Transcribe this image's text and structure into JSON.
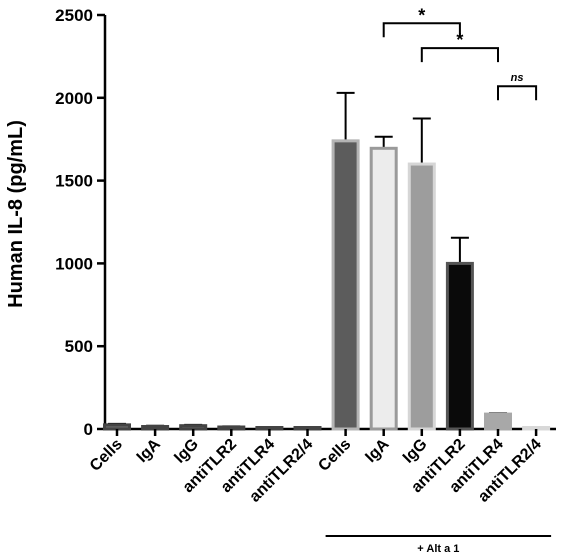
{
  "chart_data": {
    "type": "bar",
    "ylabel": "Human IL-8 (pg/mL)",
    "ylim": [
      0,
      2500
    ],
    "yticks": [
      0,
      500,
      1000,
      1500,
      2000,
      2500
    ],
    "grid": false,
    "categories": [
      "Cells",
      "IgA",
      "IgG",
      "antiTLR2",
      "antiTLR4",
      "antiTLR2/4",
      "Cells",
      "IgA",
      "IgG",
      "antiTLR2",
      "antiTLR4",
      "antiTLR2/4"
    ],
    "values": [
      25,
      15,
      20,
      12,
      8,
      8,
      1740,
      1695,
      1600,
      1000,
      90,
      8
    ],
    "errors": [
      6,
      5,
      5,
      4,
      3,
      3,
      290,
      70,
      275,
      155,
      5,
      3
    ],
    "bar_fill": [
      "#6a6a6a",
      "#6a6a6a",
      "#6a6a6a",
      "#6a6a6a",
      "#6a6a6a",
      "#6a6a6a",
      "#5c5c5c",
      "#ececec",
      "#9d9d9d",
      "#0a0a0a",
      "#a8a8a8",
      "#d8d8d8"
    ],
    "bar_stroke": [
      "#444444",
      "#444444",
      "#444444",
      "#444444",
      "#444444",
      "#444444",
      "#b4b4b4",
      "#9a9a9a",
      "#d6d6d6",
      "#555555",
      "#a8a8a8",
      "#d8d8d8"
    ],
    "group_label": "+ Alt a 1",
    "group_start": 6,
    "group_end": 11,
    "brackets": [
      {
        "from": 7,
        "to": 9,
        "label": "*",
        "y": 2450
      },
      {
        "from": 8,
        "to": 10,
        "label": "*",
        "y": 2300
      },
      {
        "from": 10,
        "to": 11,
        "label": "ns",
        "y": 2070
      }
    ]
  }
}
